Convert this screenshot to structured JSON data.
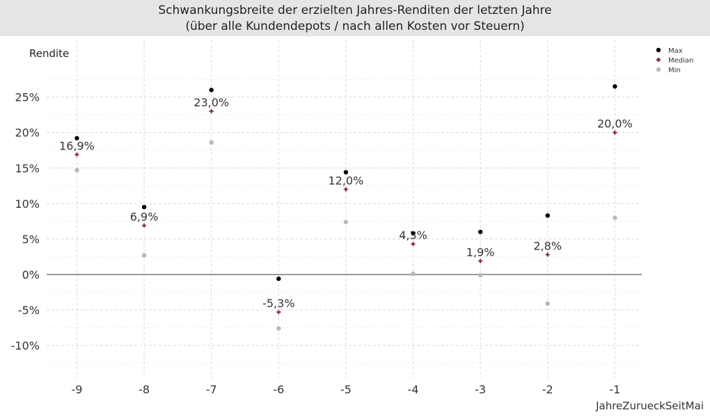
{
  "chart_data": {
    "type": "scatter",
    "title": "Schwankungsbreite der erzielten Jahres-Renditen der letzten Jahre",
    "subtitle": "(über alle Kundendepots / nach allen Kosten vor Steuern)",
    "xlabel": "JahreZurueckSeitMai",
    "ylabel": "Rendite",
    "x": [
      -9,
      -8,
      -7,
      -6,
      -5,
      -4,
      -3,
      -2,
      -1
    ],
    "xlim": [
      -9.45,
      -0.6
    ],
    "ylim": [
      -14.5,
      33
    ],
    "yticks": [
      -10,
      -5,
      0,
      5,
      10,
      15,
      20,
      25
    ],
    "ytick_labels": [
      "-10%",
      "-5%",
      "0%",
      "5%",
      "10%",
      "15%",
      "20%",
      "25%"
    ],
    "xtick_labels": [
      "-9",
      "-8",
      "-7",
      "-6",
      "-5",
      "-4",
      "-3",
      "-2",
      "-1"
    ],
    "grid": true,
    "legend_position": "top-right",
    "series": [
      {
        "name": "Max",
        "color": "#000000",
        "marker": "circle",
        "values": [
          19.2,
          9.5,
          26.0,
          -0.6,
          14.4,
          5.8,
          6.0,
          8.3,
          26.5
        ]
      },
      {
        "name": "Median",
        "color": "#8b2252",
        "marker": "plus",
        "values": [
          16.9,
          6.9,
          23.0,
          -5.3,
          12.0,
          4.3,
          1.9,
          2.8,
          20.0
        ]
      },
      {
        "name": "Min",
        "color": "#b8b8b8",
        "marker": "circle",
        "values": [
          14.7,
          2.7,
          18.6,
          -7.6,
          7.4,
          0.1,
          -0.1,
          -4.1,
          8.0
        ]
      }
    ],
    "data_labels": [
      "16,9%",
      "6,9%",
      "23,0%",
      "-5,3%",
      "12,0%",
      "4,3%",
      "1,9%",
      "2,8%",
      "20,0%"
    ]
  }
}
